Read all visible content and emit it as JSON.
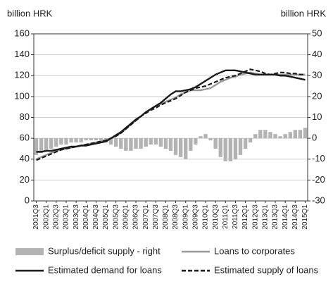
{
  "chart_data": {
    "type": "bar-line",
    "y_label": "billion HRK",
    "y2_label": "billion HRK",
    "categories": [
      "2001Q3",
      null,
      "2002Q1",
      null,
      "2002Q3",
      null,
      "2003Q1",
      null,
      "2003Q3",
      null,
      "2004Q1",
      null,
      "2004Q3",
      null,
      "2005Q1",
      null,
      "2005Q3",
      null,
      "2006Q1",
      null,
      "2006Q3",
      null,
      "2007Q1",
      null,
      "2007Q3",
      null,
      "2008Q1",
      null,
      "2008Q3",
      null,
      "2009Q1",
      null,
      "2009Q3",
      null,
      "2010Q1",
      null,
      "2010Q3",
      null,
      "2011Q1",
      null,
      "2011Q3",
      null,
      "2012Q1",
      null,
      "2012Q3",
      null,
      "2013Q1",
      null,
      "2013Q3",
      null,
      "2014Q1",
      null,
      "2014Q3",
      null,
      "2015Q1"
    ],
    "series": [
      {
        "name": "Surplus/deficit supply - right",
        "kind": "bar",
        "axis": "y2",
        "color": "#b3b3b3",
        "values": [
          -8,
          -7,
          -6,
          -5,
          -4,
          -3,
          -3,
          -2,
          -2,
          -2,
          -1,
          -1,
          -1,
          -1,
          -2,
          -3,
          -4,
          -5,
          -6,
          -6,
          -5,
          -5,
          -4,
          -3,
          -3,
          -4,
          -5,
          -6,
          -8,
          -9,
          -10,
          -6,
          -3,
          1,
          2,
          -1,
          -5,
          -9,
          -11,
          -11,
          -10,
          -8,
          -5,
          -2,
          2,
          4,
          4,
          3,
          2,
          1,
          2,
          3,
          4,
          4,
          5
        ]
      },
      {
        "name": "Loans to corporates",
        "kind": "line",
        "axis": "y",
        "color": "#999999",
        "dash": false,
        "values": [
          40,
          42,
          44,
          46,
          48,
          49,
          50,
          51,
          52,
          53,
          54,
          55,
          56,
          57,
          58,
          60,
          62,
          65,
          69,
          73,
          77,
          81,
          85,
          88,
          91,
          93,
          95,
          97,
          99,
          102,
          104,
          106,
          106,
          106,
          107,
          108,
          111,
          114,
          116,
          118,
          119,
          121,
          122,
          123,
          122,
          121,
          121,
          121,
          121,
          121,
          121,
          121,
          121,
          121,
          121
        ]
      },
      {
        "name": "Estimated demand for loans",
        "kind": "line",
        "axis": "y",
        "color": "#1a1a1a",
        "dash": false,
        "values": [
          47,
          47,
          48,
          48,
          49,
          50,
          51,
          52,
          52,
          53,
          53,
          54,
          55,
          56,
          57,
          60,
          63,
          66,
          70,
          74,
          78,
          81,
          85,
          88,
          91,
          94,
          98,
          102,
          105,
          105,
          106,
          107,
          109,
          112,
          115,
          118,
          121,
          123,
          125,
          125,
          125,
          124,
          123,
          122,
          121,
          121,
          121,
          121,
          121,
          120,
          120,
          119,
          118,
          117,
          116
        ]
      },
      {
        "name": "Estimated supply of loans",
        "kind": "line",
        "axis": "y",
        "color": "#1a1a1a",
        "dash": true,
        "values": [
          39,
          41,
          43,
          45,
          47,
          49,
          50,
          51,
          52,
          53,
          54,
          55,
          56,
          57,
          58,
          60,
          62,
          65,
          69,
          73,
          77,
          81,
          84,
          87,
          89,
          92,
          94,
          96,
          98,
          101,
          104,
          106,
          108,
          109,
          110,
          112,
          114,
          116,
          118,
          119,
          120,
          122,
          124,
          126,
          125,
          124,
          122,
          121,
          122,
          123,
          123,
          122,
          122,
          121,
          121
        ]
      }
    ],
    "ylim": [
      0,
      160
    ],
    "yticks": [
      0,
      20,
      40,
      60,
      80,
      100,
      120,
      140,
      160
    ],
    "y2lim": [
      -30,
      50
    ],
    "y2ticks": [
      -30,
      -20,
      -10,
      0,
      10,
      20,
      30,
      40,
      50
    ],
    "grid": true
  }
}
